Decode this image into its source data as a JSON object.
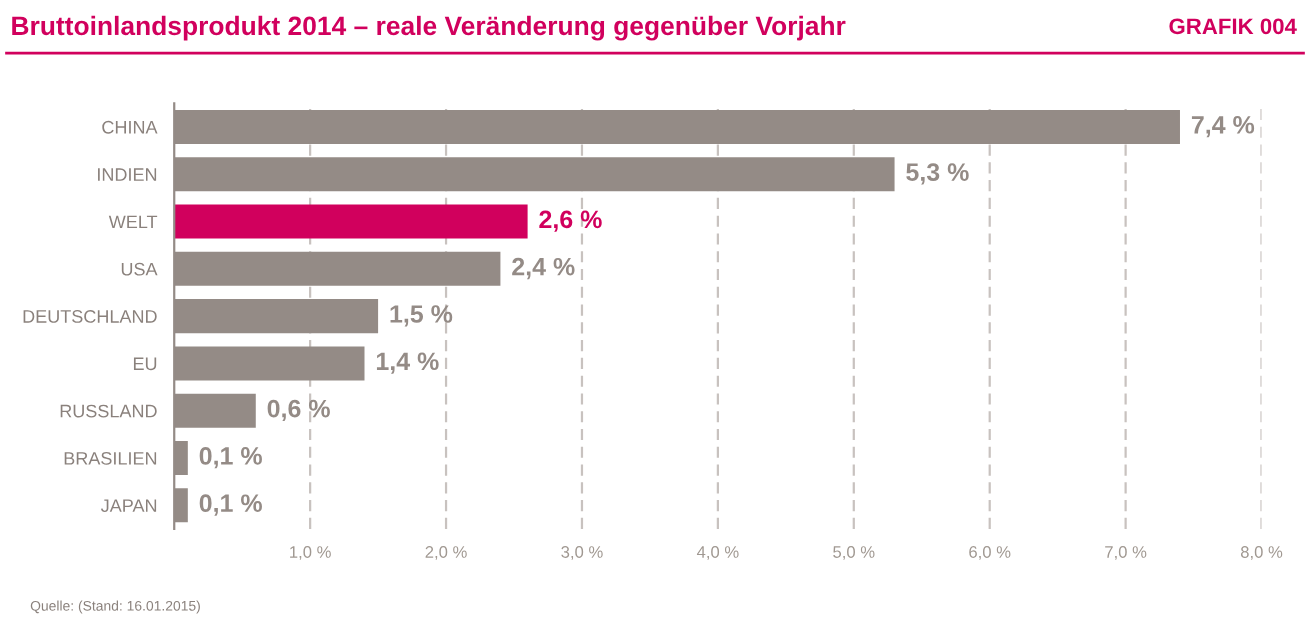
{
  "chart_data": {
    "type": "bar",
    "orientation": "horizontal",
    "title": "Bruttoinlandsprodukt 2014 – reale Veränderung gegenüber Vorjahr",
    "annotations": [
      "GRAFIK 004",
      "Quelle: (Stand: 16.01.2015)"
    ],
    "categories": [
      "CHINA",
      "INDIEN",
      "WELT",
      "USA",
      "DEUTSCHLAND",
      "EU",
      "RUSSLAND",
      "BRASILIEN",
      "JAPAN"
    ],
    "values": [
      7.4,
      5.3,
      2.6,
      2.4,
      1.5,
      1.4,
      0.6,
      0.1,
      0.1
    ],
    "value_labels": [
      "7,4 %",
      "5,3 %",
      "2,6 %",
      "2,4 %",
      "1,5 %",
      "1,4 %",
      "0,6 %",
      "0,1 %",
      "0,1 %"
    ],
    "colors": [
      "#948b86",
      "#948b86",
      "#d1005d",
      "#948b86",
      "#948b86",
      "#948b86",
      "#948b86",
      "#948b86",
      "#948b86"
    ],
    "xlim": [
      0,
      8
    ],
    "xticks": [
      {
        "value": 1,
        "label": "1,0 %"
      },
      {
        "value": 2,
        "label": "2,0 %"
      },
      {
        "value": 3,
        "label": "3,0 %"
      },
      {
        "value": 4,
        "label": "4,0 %"
      },
      {
        "value": 5,
        "label": "5,0 %"
      },
      {
        "value": 6,
        "label": "6,0 %"
      },
      {
        "value": 7,
        "label": "7,0 %"
      },
      {
        "value": 8,
        "label": "8,0 %"
      }
    ],
    "grid": "x"
  }
}
